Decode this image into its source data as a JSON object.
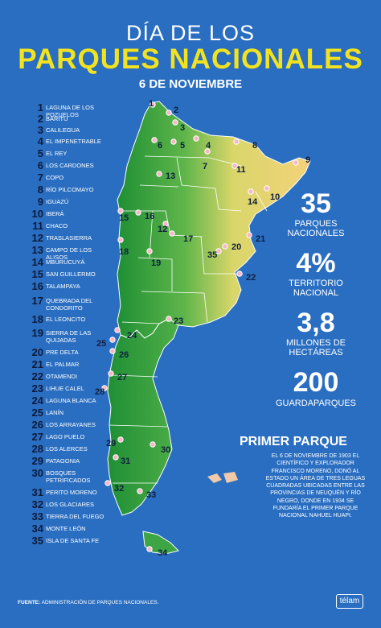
{
  "header": {
    "line1": "DÍA DE LOS",
    "line2": "PARQUES NACIONALES",
    "date": "6 DE NOVIEMBRE"
  },
  "parks": [
    {
      "n": "1",
      "name": "LAGUNA DE LOS POZUELOS"
    },
    {
      "n": "2",
      "name": "BARITU"
    },
    {
      "n": "3",
      "name": "CALILEGUA"
    },
    {
      "n": "4",
      "name": "EL IMPENETRABLE"
    },
    {
      "n": "5",
      "name": "EL REY"
    },
    {
      "n": "6",
      "name": "LOS CARDONES"
    },
    {
      "n": "7",
      "name": "COPO"
    },
    {
      "n": "8",
      "name": "RÍO PILCOMAYO"
    },
    {
      "n": "9",
      "name": "IGUAZÚ"
    },
    {
      "n": "10",
      "name": "IBERÁ"
    },
    {
      "n": "11",
      "name": "CHACO"
    },
    {
      "n": "12",
      "name": "TRASLASIERRA"
    },
    {
      "n": "13",
      "name": "CAMPO DE LOS ALISOS"
    },
    {
      "n": "14",
      "name": "MBURUCUYÁ"
    },
    {
      "n": "15",
      "name": "SAN GUILLERMO"
    },
    {
      "n": "16",
      "name": "TALAMPAYA"
    },
    {
      "n": "17",
      "name": "QUEBRADA DEL CONDORITO"
    },
    {
      "n": "18",
      "name": "EL LEONCITO"
    },
    {
      "n": "19",
      "name": "SIERRA DE LAS QUIJADAS"
    },
    {
      "n": "20",
      "name": "PRE DELTA"
    },
    {
      "n": "21",
      "name": "EL PALMAR"
    },
    {
      "n": "22",
      "name": "OTAMENDI"
    },
    {
      "n": "23",
      "name": "LIHUE CALEL"
    },
    {
      "n": "24",
      "name": "LAGUNA BLANCA"
    },
    {
      "n": "25",
      "name": "LANÍN"
    },
    {
      "n": "26",
      "name": "LOS ARRAYANES"
    },
    {
      "n": "27",
      "name": "LAGO PUELO"
    },
    {
      "n": "28",
      "name": "LOS ALERCES"
    },
    {
      "n": "29",
      "name": "PATAGONIA"
    },
    {
      "n": "30",
      "name": "BOSQUES PETRIFICADOS"
    },
    {
      "n": "31",
      "name": "PERITO MORENO"
    },
    {
      "n": "32",
      "name": "LOS GLACIARES"
    },
    {
      "n": "33",
      "name": "TIERRA DEL FUEGO"
    },
    {
      "n": "34",
      "name": "MONTE LEÓN"
    },
    {
      "n": "35",
      "name": "ISLA DE SANTA FE"
    }
  ],
  "stats": [
    {
      "value": "35",
      "label": "PARQUES NACIONALES"
    },
    {
      "value": "4%",
      "label": "TERRITORIO NACIONAL"
    },
    {
      "value": "3,8",
      "label": "MILLONES DE HECTÁREAS"
    },
    {
      "value": "200",
      "label": "GUARDAPARQUES"
    }
  ],
  "first_park": {
    "title": "PRIMER PARQUE",
    "body": "EL 6 DE NOVIEMBRE DE 1903 EL CIENTÍFICO Y EXPLORADOR FRANCISCO MORENO, DONÓ AL ESTADO UN ÁREA DE TRES LEGUAS CUADRADAS UBICADAS ENTRE LAS PROVINCIAS DE NEUQUÉN Y RÍO NEGRO, DONDE EN 1934 SE FUNDARÍA EL PRIMER PARQUE NACIONAL NAHUEL HUAPI."
  },
  "footer": {
    "source_label": "FUENTE:",
    "source_text": "ADMINISTRACIÓN DE PARQUES NACIONALES.",
    "logo": "télam"
  },
  "colors": {
    "background": "#2a6ec1",
    "title_yellow": "#f2e320",
    "map_green": "#2e9a3a",
    "map_yellow": "#f0d470",
    "number_dark": "#0d1a3a"
  },
  "map_markers": [
    {
      "n": "1"
    },
    {
      "n": "2"
    },
    {
      "n": "3"
    },
    {
      "n": "4"
    },
    {
      "n": "5"
    },
    {
      "n": "6"
    },
    {
      "n": "7"
    },
    {
      "n": "8"
    },
    {
      "n": "9"
    },
    {
      "n": "10"
    },
    {
      "n": "11"
    },
    {
      "n": "12"
    },
    {
      "n": "13"
    },
    {
      "n": "14"
    },
    {
      "n": "15"
    },
    {
      "n": "16"
    },
    {
      "n": "17"
    },
    {
      "n": "18"
    },
    {
      "n": "19"
    },
    {
      "n": "20"
    },
    {
      "n": "21"
    },
    {
      "n": "22"
    },
    {
      "n": "23"
    },
    {
      "n": "24"
    },
    {
      "n": "25"
    },
    {
      "n": "26"
    },
    {
      "n": "27"
    },
    {
      "n": "28"
    },
    {
      "n": "29"
    },
    {
      "n": "30"
    },
    {
      "n": "31"
    },
    {
      "n": "32"
    },
    {
      "n": "33"
    },
    {
      "n": "34"
    },
    {
      "n": "35"
    }
  ]
}
